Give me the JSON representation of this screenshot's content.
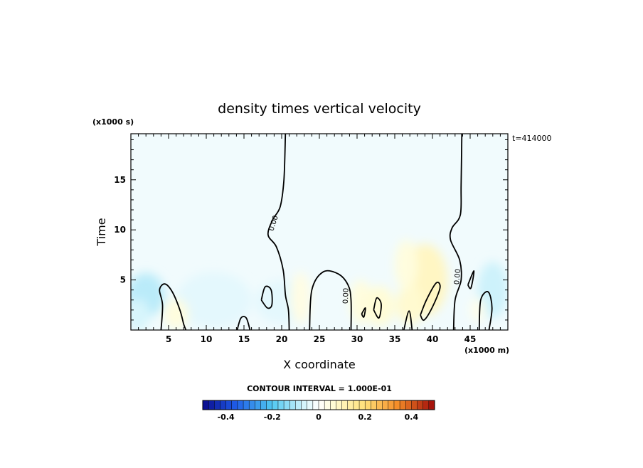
{
  "chart_data": {
    "type": "heatmap",
    "title": "density times vertical velocity",
    "xlabel": "X coordinate",
    "ylabel": "Time",
    "x_units": "(x1000 m)",
    "y_units": "(x1000 s)",
    "time_stamp": "t=414000",
    "xlim": [
      0,
      50
    ],
    "ylim": [
      0,
      19.6
    ],
    "x_ticks": [
      5,
      10,
      15,
      20,
      25,
      30,
      35,
      40,
      45
    ],
    "y_ticks": [
      5,
      10,
      15
    ],
    "contour_interval_text": "CONTOUR INTERVAL = 1.000E-01",
    "zero_contour_label": "0.00",
    "colorbar": {
      "range": [
        -0.5,
        0.5
      ],
      "ticks": [
        -0.4,
        -0.2,
        0,
        0.2,
        0.4
      ],
      "tick_labels": [
        "-0.4",
        "-0.2",
        "0",
        "0.2",
        "0.4"
      ],
      "n_bins": 40
    },
    "field_patches": [
      {
        "x": 2,
        "y": 3.5,
        "rx": 2.5,
        "ry": 2.2,
        "value": -0.09
      },
      {
        "x": 1,
        "y": 1.5,
        "rx": 1.5,
        "ry": 1.6,
        "value": -0.06
      },
      {
        "x": 11,
        "y": 3,
        "rx": 5,
        "ry": 2.8,
        "value": -0.04
      },
      {
        "x": 20,
        "y": 2.8,
        "rx": 3.5,
        "ry": 2.2,
        "value": -0.04
      },
      {
        "x": 48,
        "y": 4,
        "rx": 2,
        "ry": 2.8,
        "value": -0.07
      },
      {
        "x": 6,
        "y": 1.6,
        "rx": 1.6,
        "ry": 1.5,
        "value": 0.05
      },
      {
        "x": 22.5,
        "y": 3.2,
        "rx": 1.3,
        "ry": 2.6,
        "value": 0.04
      },
      {
        "x": 30.5,
        "y": 2.8,
        "rx": 1.5,
        "ry": 2.2,
        "value": 0.05
      },
      {
        "x": 33,
        "y": 2.4,
        "rx": 2,
        "ry": 2,
        "value": 0.06
      },
      {
        "x": 39,
        "y": 5,
        "rx": 3,
        "ry": 3.6,
        "value": 0.09
      },
      {
        "x": 37,
        "y": 2.5,
        "rx": 1.8,
        "ry": 2,
        "value": 0.07
      },
      {
        "x": 36.5,
        "y": 6.5,
        "rx": 1.5,
        "ry": 2.5,
        "value": 0.05
      },
      {
        "x": 46,
        "y": 2,
        "rx": 1,
        "ry": 1.2,
        "value": 0.03
      }
    ],
    "zero_contours": [
      [
        [
          20.5,
          19.6
        ],
        [
          20.3,
          15.0
        ],
        [
          19.8,
          12.3
        ],
        [
          18.8,
          11.0
        ],
        [
          18.2,
          9.5
        ],
        [
          19.3,
          8.3
        ],
        [
          20.2,
          6.0
        ],
        [
          20.5,
          3.5
        ],
        [
          20.9,
          2.0
        ],
        [
          21.0,
          0.0
        ]
      ],
      [
        [
          43.9,
          19.6
        ],
        [
          43.8,
          14.5
        ],
        [
          43.7,
          11.5
        ],
        [
          42.6,
          10.2
        ],
        [
          42.4,
          9.0
        ],
        [
          43.6,
          7.0
        ],
        [
          43.8,
          5.0
        ],
        [
          43.0,
          3.0
        ],
        [
          42.8,
          0.0
        ]
      ],
      [
        [
          4.0,
          0.0
        ],
        [
          4.2,
          2.5
        ],
        [
          3.8,
          4.0
        ],
        [
          4.5,
          4.6
        ],
        [
          5.5,
          3.8
        ],
        [
          6.5,
          2.0
        ],
        [
          7.0,
          0.6
        ],
        [
          7.3,
          0.0
        ]
      ],
      [
        [
          23.7,
          0.0
        ],
        [
          24.0,
          4.0
        ],
        [
          25.5,
          5.8
        ],
        [
          27.5,
          5.6
        ],
        [
          28.8,
          4.5
        ],
        [
          29.2,
          3.0
        ],
        [
          29.2,
          0.0
        ]
      ],
      [
        [
          14.1,
          0.0
        ],
        [
          14.6,
          1.2
        ],
        [
          15.3,
          1.2
        ],
        [
          15.8,
          0.0
        ]
      ],
      [
        [
          17.3,
          3.0
        ],
        [
          17.8,
          4.3
        ],
        [
          18.6,
          4.0
        ],
        [
          18.7,
          2.5
        ],
        [
          18.1,
          2.2
        ],
        [
          17.3,
          3.0
        ]
      ],
      [
        [
          32.2,
          2.0
        ],
        [
          32.6,
          3.2
        ],
        [
          33.2,
          2.6
        ],
        [
          32.9,
          1.2
        ],
        [
          32.2,
          2.0
        ]
      ],
      [
        [
          38.4,
          1.5
        ],
        [
          39.2,
          3.0
        ],
        [
          40.5,
          4.7
        ],
        [
          41.0,
          4.2
        ],
        [
          40.0,
          2.3
        ],
        [
          38.9,
          1.0
        ],
        [
          38.4,
          1.5
        ]
      ],
      [
        [
          46.2,
          0.0
        ],
        [
          46.4,
          3.0
        ],
        [
          47.4,
          3.8
        ],
        [
          47.9,
          2.2
        ],
        [
          47.5,
          0.0
        ]
      ],
      [
        [
          36.2,
          0.0
        ],
        [
          36.9,
          1.9
        ],
        [
          37.3,
          0.0
        ]
      ],
      [
        [
          44.7,
          4.5
        ],
        [
          45.5,
          5.9
        ],
        [
          45.1,
          4.2
        ],
        [
          44.7,
          4.5
        ]
      ],
      [
        [
          30.6,
          1.6
        ],
        [
          31.1,
          2.2
        ],
        [
          30.9,
          1.3
        ],
        [
          30.6,
          1.6
        ]
      ]
    ]
  }
}
